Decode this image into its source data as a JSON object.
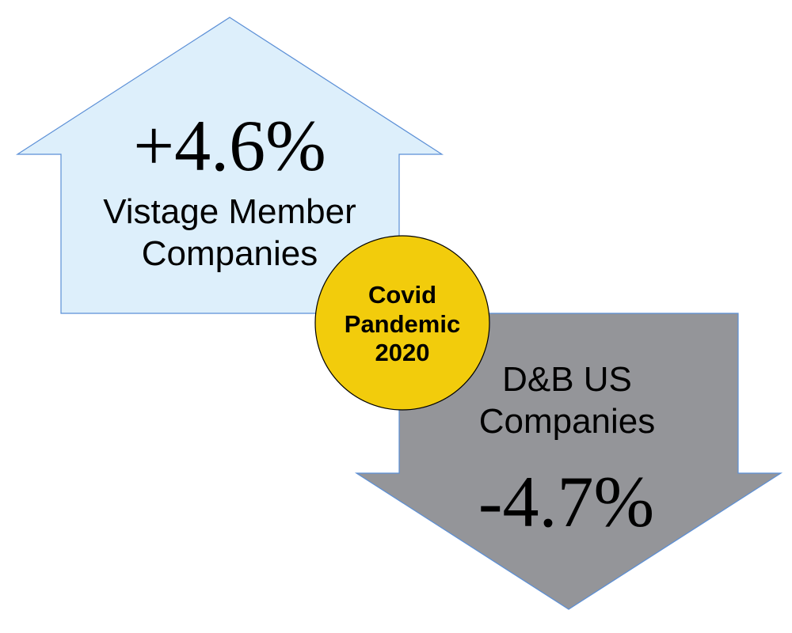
{
  "up_arrow": {
    "value": "+4.6%",
    "label_line1": "Vistage Member",
    "label_line2": "Companies",
    "fill": "#ddeffb",
    "stroke": "#5b8fd6"
  },
  "down_arrow": {
    "value": "-4.7%",
    "label_line1": "D&B US",
    "label_line2": "Companies",
    "fill": "#949599",
    "stroke": "#5b8fd6"
  },
  "center_circle": {
    "line1": "Covid",
    "line2": "Pandemic",
    "line3": "2020",
    "fill": "#f2cc0c",
    "stroke": "#000000"
  }
}
